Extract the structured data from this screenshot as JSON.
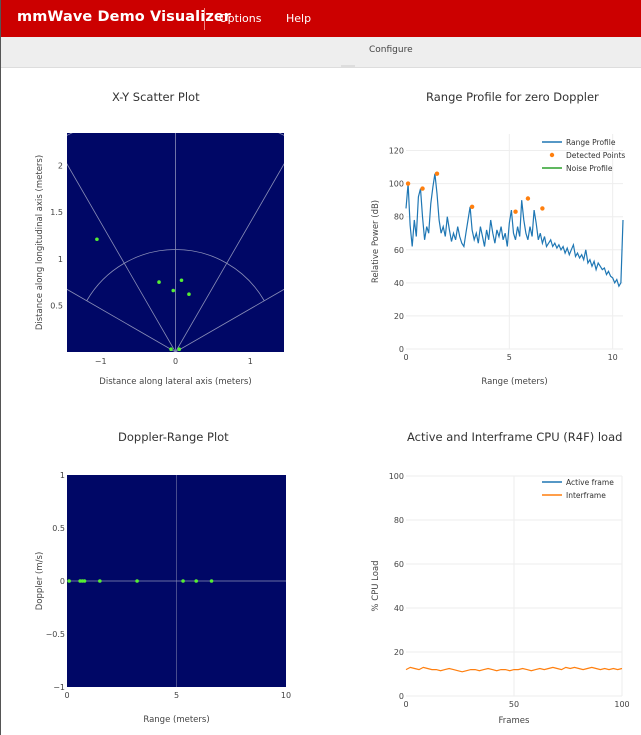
{
  "app": {
    "title": "mmWave Demo Visualizer"
  },
  "menu": {
    "options": "Options",
    "help": "Help"
  },
  "subbar": {
    "configure": "Configure"
  },
  "colors": {
    "brand": "#cc0000",
    "plot_bg": "#000766",
    "range_profile": "#1f77b4",
    "detected": "#ff7f0e",
    "noise": "#2ca02c",
    "points": "#55ee33"
  },
  "plots": {
    "scatter": {
      "title": "X-Y Scatter Plot",
      "xlabel": "Distance along lateral axis (meters)",
      "ylabel": "Distance along longitudinal axis (meters)",
      "xticks": [
        "−1",
        "0",
        "1"
      ],
      "yticks": [
        "0.5",
        "1",
        "1.5",
        "2"
      ]
    },
    "doppler": {
      "title": "Doppler-Range Plot",
      "xlabel": "Range (meters)",
      "ylabel": "Doppler (m/s)",
      "xticks": [
        "0",
        "5",
        "10"
      ],
      "yticks": [
        "−1",
        "−0.5",
        "0",
        "0.5",
        "1"
      ]
    },
    "range_profile": {
      "title": "Range Profile for zero Doppler",
      "xlabel": "Range (meters)",
      "ylabel": "Relative Power (dB)",
      "xticks": [
        "0",
        "5",
        "10"
      ],
      "yticks": [
        "0",
        "20",
        "40",
        "60",
        "80",
        "100",
        "120"
      ],
      "legend": [
        "Range Profile",
        "Detected Points",
        "Noise Profile"
      ]
    },
    "cpu": {
      "title": "Active and Interframe CPU (R4F) load",
      "xlabel": "Frames",
      "ylabel": "% CPU Load",
      "xticks": [
        "0",
        "50",
        "100"
      ],
      "yticks": [
        "0",
        "20",
        "40",
        "60",
        "80",
        "100"
      ],
      "legend": [
        "Active frame",
        "Interframe"
      ]
    }
  },
  "chart_data": [
    {
      "type": "scatter",
      "title": "X-Y Scatter Plot",
      "xlabel": "Distance along lateral axis (meters)",
      "ylabel": "Distance along longitudinal axis (meters)",
      "xlim": [
        -1.45,
        1.45
      ],
      "ylim": [
        0,
        2.35
      ],
      "x": [
        -1.05,
        -0.22,
        -0.03,
        0.08,
        0.18,
        -0.06,
        0.05
      ],
      "y": [
        1.21,
        0.75,
        0.66,
        0.77,
        0.62,
        0.03,
        0.03
      ]
    },
    {
      "type": "scatter",
      "title": "Doppler-Range Plot",
      "xlabel": "Range (meters)",
      "ylabel": "Doppler (m/s)",
      "xlim": [
        0,
        10
      ],
      "ylim": [
        -1,
        1
      ],
      "x": [
        0.1,
        0.6,
        0.7,
        0.8,
        1.5,
        3.2,
        5.3,
        5.9,
        6.6
      ],
      "y": [
        0,
        0,
        0,
        0,
        0,
        0,
        0,
        0,
        0
      ]
    },
    {
      "type": "line",
      "title": "Range Profile for zero Doppler",
      "xlabel": "Range (meters)",
      "ylabel": "Relative Power (dB)",
      "xlim": [
        0,
        10.5
      ],
      "ylim": [
        0,
        130
      ],
      "series": [
        {
          "name": "Range Profile",
          "x": [
            0,
            0.1,
            0.2,
            0.3,
            0.4,
            0.5,
            0.6,
            0.7,
            0.8,
            0.9,
            1,
            1.1,
            1.2,
            1.3,
            1.4,
            1.5,
            1.6,
            1.7,
            1.8,
            1.9,
            2,
            2.1,
            2.2,
            2.3,
            2.4,
            2.5,
            2.6,
            2.7,
            2.8,
            2.9,
            3,
            3.1,
            3.2,
            3.3,
            3.4,
            3.5,
            3.6,
            3.7,
            3.8,
            3.9,
            4,
            4.1,
            4.2,
            4.3,
            4.4,
            4.5,
            4.6,
            4.7,
            4.8,
            4.9,
            5,
            5.1,
            5.2,
            5.3,
            5.4,
            5.5,
            5.6,
            5.7,
            5.8,
            5.9,
            6,
            6.1,
            6.2,
            6.3,
            6.4,
            6.5,
            6.6,
            6.7,
            6.8,
            6.9,
            7,
            7.1,
            7.2,
            7.3,
            7.4,
            7.5,
            7.6,
            7.7,
            7.8,
            7.9,
            8,
            8.1,
            8.2,
            8.3,
            8.4,
            8.5,
            8.6,
            8.7,
            8.8,
            8.9,
            9,
            9.1,
            9.2,
            9.3,
            9.4,
            9.5,
            9.6,
            9.7,
            9.8,
            9.9,
            10,
            10.1,
            10.2,
            10.3,
            10.4,
            10.5
          ],
          "y": [
            85,
            100,
            75,
            62,
            78,
            68,
            92,
            97,
            80,
            66,
            74,
            70,
            88,
            98,
            106,
            94,
            78,
            70,
            74,
            68,
            80,
            72,
            65,
            70,
            66,
            74,
            68,
            64,
            62,
            70,
            78,
            86,
            72,
            66,
            70,
            64,
            74,
            68,
            62,
            72,
            66,
            78,
            70,
            64,
            72,
            68,
            74,
            66,
            70,
            62,
            76,
            84,
            70,
            66,
            74,
            68,
            90,
            78,
            70,
            66,
            74,
            68,
            84,
            76,
            66,
            70,
            64,
            68,
            62,
            64,
            66,
            62,
            64,
            61,
            63,
            60,
            62,
            58,
            61,
            57,
            60,
            63,
            56,
            58,
            55,
            57,
            54,
            60,
            52,
            54,
            50,
            53,
            48,
            52,
            50,
            48,
            49,
            45,
            47,
            44,
            43,
            40,
            42,
            38,
            40,
            78
          ]
        },
        {
          "name": "Detected Points",
          "x": [
            0.1,
            0.8,
            1.5,
            3.2,
            5.3,
            5.9,
            6.6
          ],
          "y": [
            100,
            97,
            106,
            86,
            83,
            91,
            85
          ]
        },
        {
          "name": "Noise Profile",
          "x": [],
          "y": []
        }
      ]
    },
    {
      "type": "line",
      "title": "Active and Interframe CPU (R4F) load",
      "xlabel": "Frames",
      "ylabel": "% CPU Load",
      "xlim": [
        0,
        100
      ],
      "ylim": [
        0,
        100
      ],
      "series": [
        {
          "name": "Active frame",
          "x": [],
          "y": []
        },
        {
          "name": "Interframe",
          "x": [
            0,
            2,
            4,
            6,
            8,
            10,
            12,
            14,
            16,
            18,
            20,
            22,
            24,
            26,
            28,
            30,
            32,
            34,
            36,
            38,
            40,
            42,
            44,
            46,
            48,
            50,
            52,
            54,
            56,
            58,
            60,
            62,
            64,
            66,
            68,
            70,
            72,
            74,
            76,
            78,
            80,
            82,
            84,
            86,
            88,
            90,
            92,
            94,
            96,
            98,
            100
          ],
          "y": [
            12,
            13,
            12.5,
            12,
            13,
            12.5,
            12,
            12,
            11.5,
            12,
            12.5,
            12,
            11.5,
            11,
            11.5,
            12,
            12,
            11.5,
            12,
            12.5,
            12,
            11.5,
            12,
            12,
            11.5,
            12,
            12,
            12.5,
            12,
            11.5,
            12,
            12.5,
            12,
            12.5,
            13,
            12.5,
            12,
            13,
            12.5,
            13,
            12.5,
            12,
            12.5,
            13,
            12.5,
            12,
            12.5,
            12,
            12.5,
            12,
            12.5
          ]
        }
      ]
    }
  ]
}
